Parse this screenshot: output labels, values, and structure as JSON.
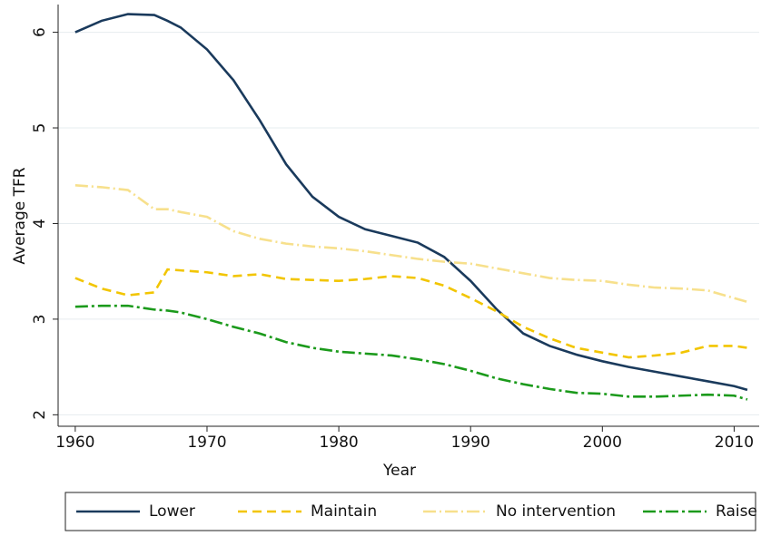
{
  "chart_data": {
    "type": "line",
    "x_label": "Year",
    "y_label": "Average TFR",
    "x": [
      1960,
      1962,
      1964,
      1966,
      1967,
      1968,
      1970,
      1972,
      1974,
      1976,
      1978,
      1980,
      1982,
      1984,
      1986,
      1988,
      1990,
      1992,
      1994,
      1996,
      1998,
      2000,
      2002,
      2004,
      2006,
      2008,
      2010,
      2011
    ],
    "series": [
      {
        "name": "Lower",
        "color": "#1a3a5c",
        "dash": "none",
        "values": [
          6.0,
          6.12,
          6.19,
          6.18,
          6.12,
          6.05,
          5.82,
          5.5,
          5.08,
          4.62,
          4.28,
          4.07,
          3.94,
          3.87,
          3.8,
          3.65,
          3.4,
          3.1,
          2.85,
          2.72,
          2.63,
          2.56,
          2.5,
          2.45,
          2.4,
          2.35,
          2.3,
          2.26
        ]
      },
      {
        "name": "Maintain",
        "color": "#f2c500",
        "dash": "10 6",
        "values": [
          3.43,
          3.32,
          3.25,
          3.28,
          3.52,
          3.51,
          3.49,
          3.45,
          3.47,
          3.42,
          3.41,
          3.4,
          3.42,
          3.45,
          3.43,
          3.35,
          3.22,
          3.08,
          2.92,
          2.8,
          2.7,
          2.65,
          2.6,
          2.62,
          2.65,
          2.72,
          2.72,
          2.7
        ]
      },
      {
        "name": "No intervention",
        "color": "#f7e08c",
        "dash": "14 4 2 4",
        "values": [
          4.4,
          4.38,
          4.35,
          4.15,
          4.15,
          4.12,
          4.07,
          3.92,
          3.84,
          3.79,
          3.76,
          3.74,
          3.71,
          3.67,
          3.63,
          3.6,
          3.58,
          3.53,
          3.48,
          3.43,
          3.41,
          3.4,
          3.36,
          3.33,
          3.32,
          3.3,
          3.22,
          3.18
        ]
      },
      {
        "name": "Raise",
        "color": "#1b9a1b",
        "dash": "14 4 3 4",
        "values": [
          3.13,
          3.14,
          3.14,
          3.1,
          3.09,
          3.07,
          3.0,
          2.92,
          2.85,
          2.76,
          2.7,
          2.66,
          2.64,
          2.62,
          2.58,
          2.53,
          2.46,
          2.38,
          2.32,
          2.27,
          2.23,
          2.22,
          2.19,
          2.19,
          2.2,
          2.21,
          2.2,
          2.16
        ]
      }
    ],
    "xlim": [
      1958.7,
      2011.9
    ],
    "xticks": [
      1960,
      1970,
      1980,
      1990,
      2000,
      2010
    ],
    "ylim": [
      1.88,
      6.29
    ],
    "yticks": [
      2,
      3,
      4,
      5,
      6
    ],
    "grid": true,
    "legend": "bottom"
  }
}
